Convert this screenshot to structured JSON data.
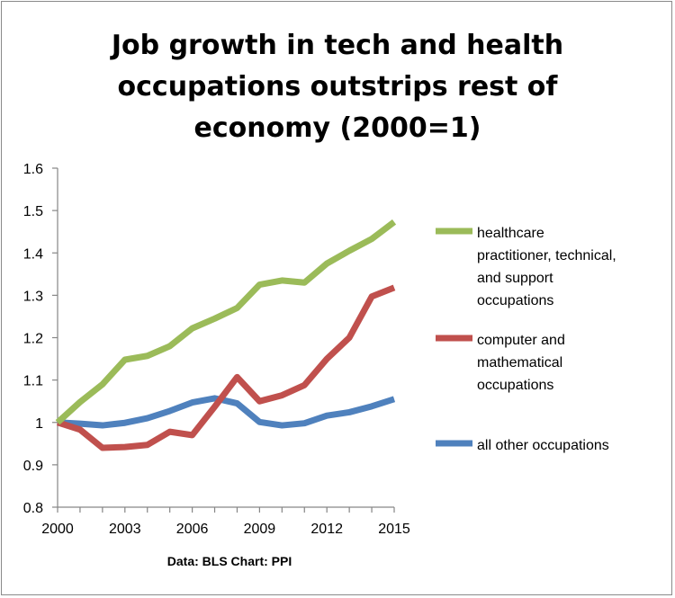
{
  "chart_data": {
    "type": "line",
    "title": "Job growth in tech and health occupations outstrips rest of economy (2000=1)",
    "title_lines": [
      "Job growth in tech and health",
      "occupations outstrips rest of",
      "economy (2000=1)"
    ],
    "source": "Data: BLS  Chart: PPI",
    "x": [
      2000,
      2001,
      2002,
      2003,
      2004,
      2005,
      2006,
      2007,
      2008,
      2009,
      2010,
      2011,
      2012,
      2013,
      2014,
      2015
    ],
    "xlim": [
      2000,
      2015
    ],
    "ylim": [
      0.8,
      1.6
    ],
    "x_ticks": [
      2000,
      2003,
      2006,
      2009,
      2012,
      2015
    ],
    "x_tick_labels": [
      "2000",
      "2003",
      "2006",
      "2009",
      "2012",
      "2015"
    ],
    "y_ticks": [
      0.8,
      0.9,
      1.0,
      1.1,
      1.2,
      1.3,
      1.4,
      1.5,
      1.6
    ],
    "y_tick_labels": [
      "0.8",
      "0.9",
      "1",
      "1.1",
      "1.2",
      "1.3",
      "1.4",
      "1.5",
      "1.6"
    ],
    "grid": false,
    "legend_position": "right",
    "series": [
      {
        "name": "healthcare practitioner, technical, and support occupations",
        "legend_lines": [
          "healthcare",
          "practitioner, technical,",
          "and support",
          "occupations"
        ],
        "color": "#9bbb59",
        "values": [
          1.0,
          1.048,
          1.09,
          1.148,
          1.157,
          1.18,
          1.222,
          1.245,
          1.27,
          1.325,
          1.335,
          1.33,
          1.375,
          1.405,
          1.433,
          1.473
        ]
      },
      {
        "name": "computer and mathematical occupations",
        "legend_lines": [
          "computer and",
          "mathematical",
          "occupations"
        ],
        "color": "#c0504d",
        "values": [
          1.0,
          0.983,
          0.94,
          0.942,
          0.947,
          0.978,
          0.97,
          1.037,
          1.107,
          1.05,
          1.064,
          1.088,
          1.15,
          1.2,
          1.297,
          1.318
        ]
      },
      {
        "name": "all other occupations",
        "legend_lines": [
          "all other occupations"
        ],
        "color": "#4f81bd",
        "values": [
          1.0,
          0.997,
          0.993,
          0.999,
          1.01,
          1.027,
          1.047,
          1.057,
          1.045,
          1.001,
          0.993,
          0.998,
          1.016,
          1.024,
          1.038,
          1.055
        ]
      }
    ]
  }
}
